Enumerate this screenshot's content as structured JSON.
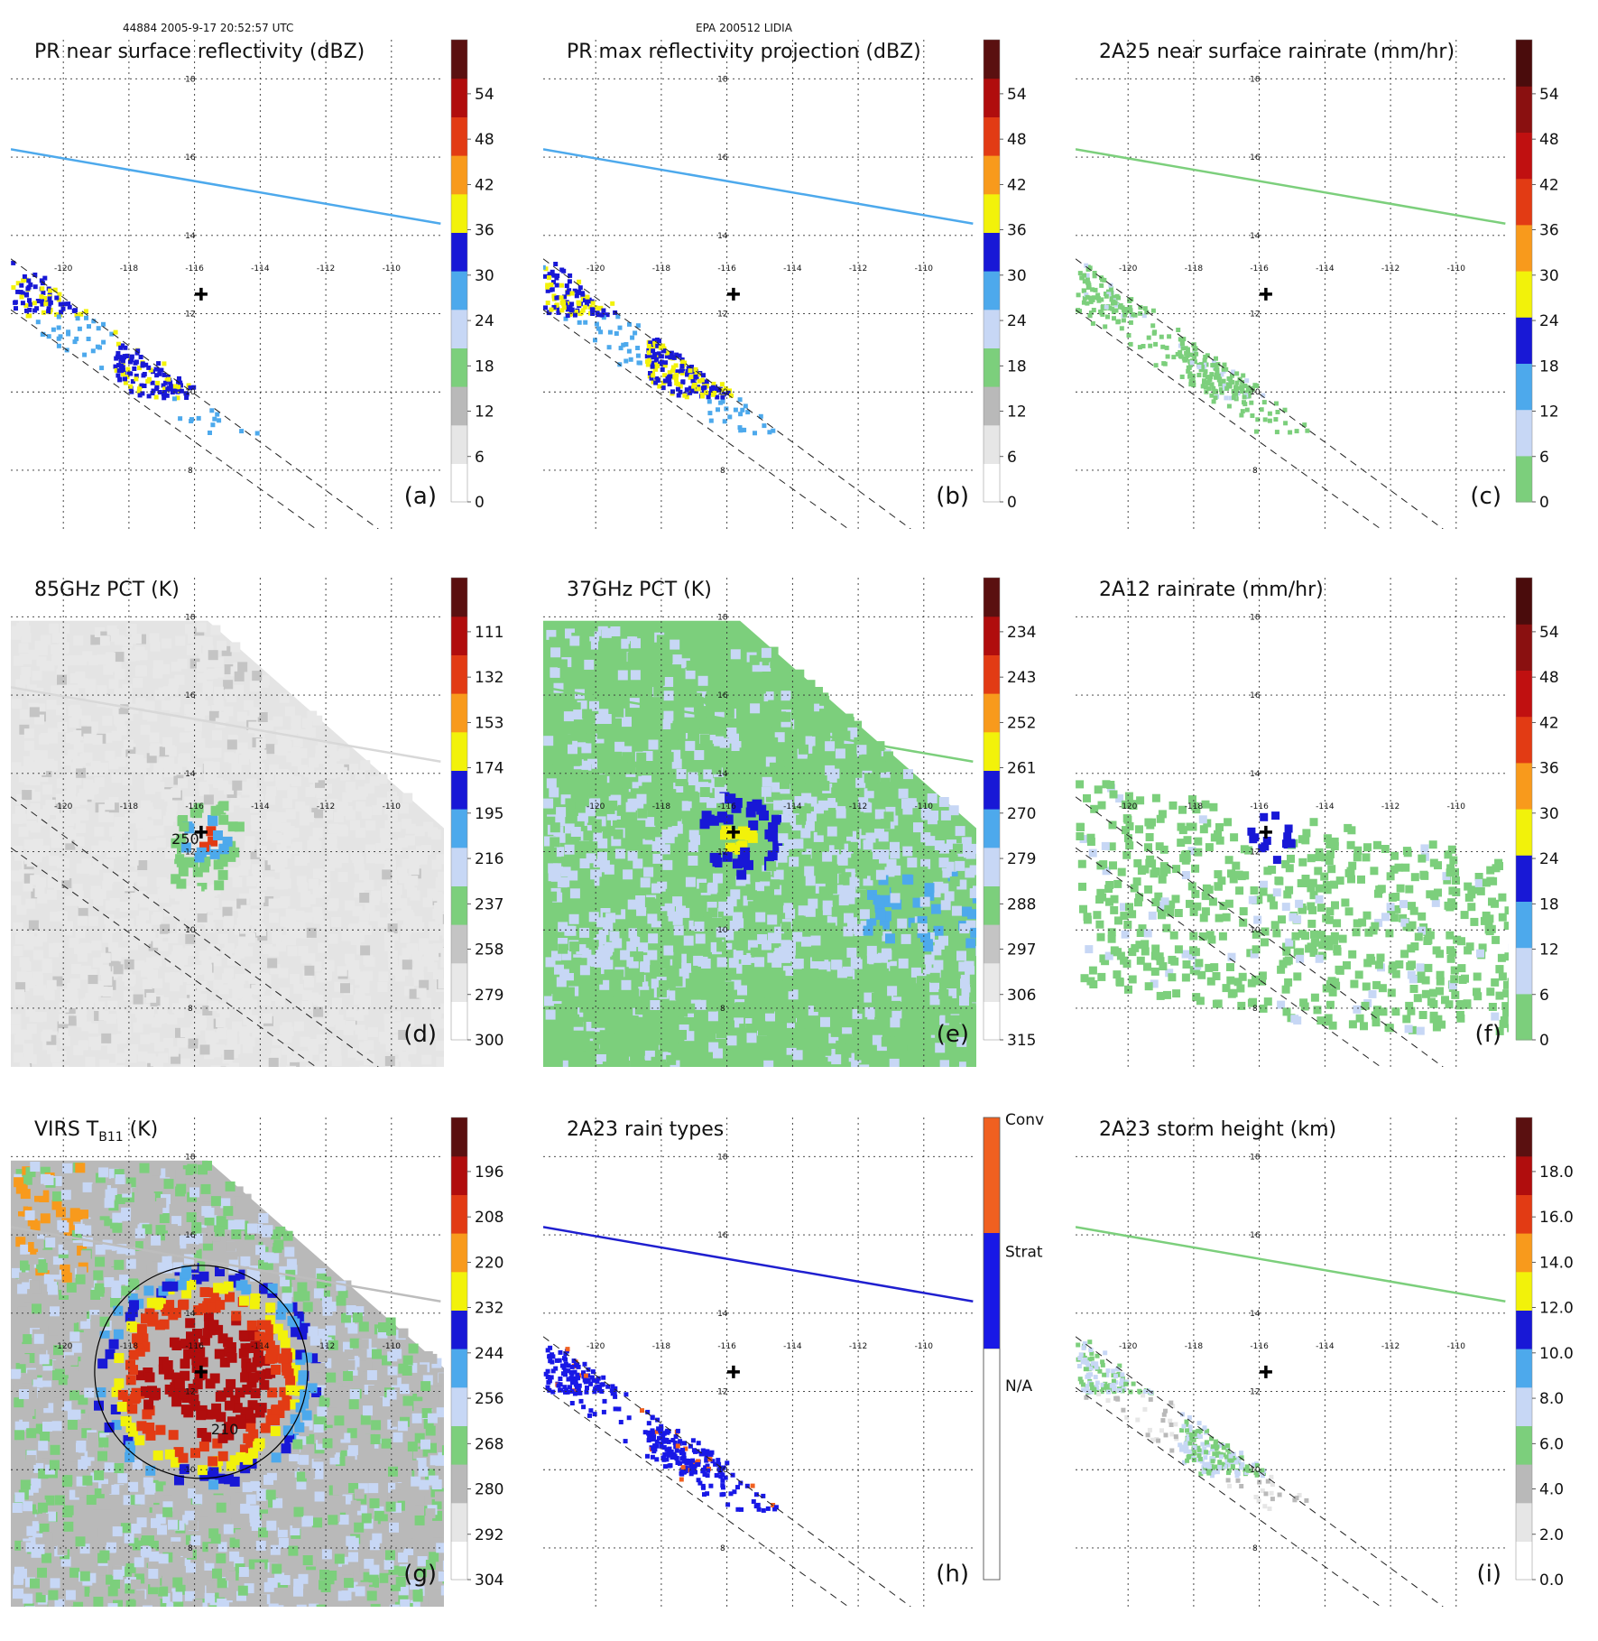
{
  "header": {
    "left": "44884 2005-9-17 20:52:57 UTC",
    "center": "EPA 200512 LIDIA"
  },
  "axes": {
    "lon_ticks": [
      "-120",
      "-118",
      "-116",
      "-114",
      "-112",
      "-110"
    ],
    "lat_ticks": [
      "18",
      "16",
      "14",
      "12",
      "10",
      "8"
    ]
  },
  "colors": {
    "swath_blue": "#4da9ec",
    "swath_green": "#7ccf7c",
    "swath_gray": "#cfcfcf",
    "swath_navy": "#1f1fcf",
    "storm_center": "#000000"
  },
  "chart_data": [
    {
      "id": "a",
      "type": "heatmap",
      "title": "PR near surface reflectivity (dBZ)",
      "panel_label": "(a)",
      "colorbar_ticks": [
        "0",
        "6",
        "12",
        "18",
        "24",
        "30",
        "36",
        "42",
        "48",
        "54"
      ],
      "colorbar_range": [
        0,
        60
      ],
      "colormap": "nasa_reflectivity",
      "field": "pr_swath_sparse",
      "swath_line_color": "#4da9ec",
      "has_pr_swath_edges": true,
      "storm_center": {
        "lon": -115.8,
        "lat": 12.5
      }
    },
    {
      "id": "b",
      "type": "heatmap",
      "title": "PR max reflectivity projection (dBZ)",
      "panel_label": "(b)",
      "colorbar_ticks": [
        "0",
        "6",
        "12",
        "18",
        "24",
        "30",
        "36",
        "42",
        "48",
        "54"
      ],
      "colorbar_range": [
        0,
        60
      ],
      "colormap": "nasa_reflectivity",
      "field": "pr_swath_max",
      "swath_line_color": "#4da9ec",
      "has_pr_swath_edges": true,
      "storm_center": {
        "lon": -115.8,
        "lat": 12.5
      }
    },
    {
      "id": "c",
      "type": "heatmap",
      "title": "2A25 near surface rainrate (mm/hr)",
      "panel_label": "(c)",
      "colorbar_ticks": [
        "0",
        "6",
        "12",
        "18",
        "24",
        "30",
        "36",
        "42",
        "48",
        "54"
      ],
      "colorbar_range": [
        0,
        60
      ],
      "colormap": "rainrate",
      "field": "pr_swath_rain",
      "swath_line_color": "#7ccf7c",
      "has_pr_swath_edges": true,
      "storm_center": {
        "lon": -115.8,
        "lat": 12.5
      }
    },
    {
      "id": "d",
      "type": "heatmap",
      "title": "85GHz PCT (K)",
      "panel_label": "(d)",
      "colorbar_ticks": [
        "300",
        "279",
        "258",
        "237",
        "216",
        "195",
        "174",
        "153",
        "132",
        "111"
      ],
      "colorbar_range": [
        90,
        300
      ],
      "colormap": "pct85",
      "field": "tmi_85",
      "contour_label": "250",
      "swath_line_color": "#d8d8d8",
      "has_pr_swath_edges": true,
      "storm_center": {
        "lon": -115.8,
        "lat": 12.5
      }
    },
    {
      "id": "e",
      "type": "heatmap",
      "title": "37GHz PCT (K)",
      "panel_label": "(e)",
      "colorbar_ticks": [
        "315",
        "306",
        "297",
        "288",
        "279",
        "270",
        "261",
        "252",
        "243",
        "234"
      ],
      "colorbar_range": [
        225,
        315
      ],
      "colormap": "pct37",
      "field": "tmi_37",
      "swath_line_color": "#7ccf7c",
      "has_pr_swath_edges": false,
      "storm_center": {
        "lon": -115.8,
        "lat": 12.5
      }
    },
    {
      "id": "f",
      "type": "heatmap",
      "title": "2A12 rainrate (mm/hr)",
      "panel_label": "(f)",
      "colorbar_ticks": [
        "0",
        "6",
        "12",
        "18",
        "24",
        "30",
        "36",
        "42",
        "48",
        "54"
      ],
      "colorbar_range": [
        0,
        60
      ],
      "colormap": "rainrate",
      "field": "tmi_rain",
      "swath_line_color": null,
      "has_pr_swath_edges": true,
      "storm_center": {
        "lon": -115.8,
        "lat": 12.5
      }
    },
    {
      "id": "g",
      "type": "heatmap",
      "title_main": "VIRS T",
      "title_sub": "B11",
      "title_tail": " (K)",
      "panel_label": "(g)",
      "colorbar_ticks": [
        "304",
        "292",
        "280",
        "268",
        "256",
        "244",
        "232",
        "220",
        "208",
        "196"
      ],
      "colorbar_range": [
        184,
        304
      ],
      "colormap": "virs",
      "field": "virs",
      "contour_label": "210",
      "swath_line_color": "#bdbdbd",
      "has_pr_swath_edges": false,
      "storm_center": {
        "lon": -115.8,
        "lat": 12.5
      }
    },
    {
      "id": "h",
      "type": "heatmap",
      "title": "2A23 rain types",
      "panel_label": "(h)",
      "categories": [
        "N/A",
        "Strat",
        "Conv"
      ],
      "category_colors": [
        "#ffffff",
        "#1818e6",
        "#f06020"
      ],
      "colormap": "raintype",
      "field": "pr_swath_type",
      "swath_line_color": "#1f1fcf",
      "has_pr_swath_edges": true,
      "storm_center": {
        "lon": -115.8,
        "lat": 12.5
      }
    },
    {
      "id": "i",
      "type": "heatmap",
      "title": "2A23 storm height (km)",
      "panel_label": "(i)",
      "colorbar_ticks": [
        "0.0",
        "2.0",
        "4.0",
        "6.0",
        "8.0",
        "10.0",
        "12.0",
        "14.0",
        "16.0",
        "18.0"
      ],
      "colorbar_range": [
        0,
        20
      ],
      "colormap": "height",
      "field": "pr_swath_height",
      "swath_line_color": "#7ccf7c",
      "has_pr_swath_edges": true,
      "storm_center": {
        "lon": -115.8,
        "lat": 12.5
      }
    }
  ]
}
